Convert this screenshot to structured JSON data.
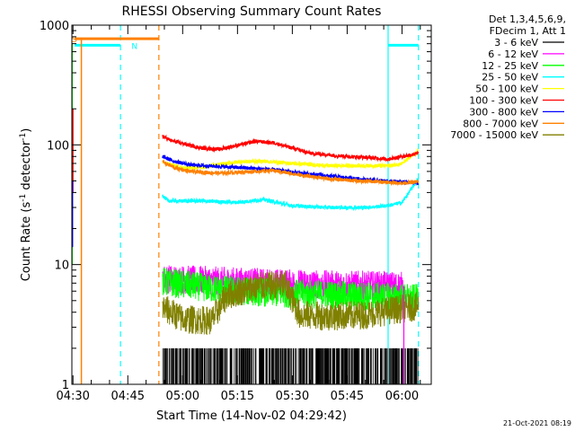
{
  "chart_data": {
    "type": "line",
    "title": "RHESSI Observing Summary Count Rates",
    "xlabel": "Start Time (14-Nov-02 04:29:42)",
    "ylabel_parts": [
      "Count Rate (s",
      "-1",
      " detector",
      "-1",
      ")"
    ],
    "y_scale": "log",
    "ylim": [
      1,
      1000
    ],
    "xlim_minutes": [
      "04:29:42",
      "06:08:00"
    ],
    "y_tick_labels": [
      {
        "label": "1",
        "value": 1
      },
      {
        "label": "10",
        "value": 10
      },
      {
        "label": "100",
        "value": 100
      },
      {
        "label": "1000",
        "value": 1000
      }
    ],
    "x_tick_labels": [
      {
        "label": "04:30",
        "minute": 270
      },
      {
        "label": "04:45",
        "minute": 285
      },
      {
        "label": "05:00",
        "minute": 300
      },
      {
        "label": "05:15",
        "minute": 315
      },
      {
        "label": "05:30",
        "minute": 330
      },
      {
        "label": "05:45",
        "minute": 345
      },
      {
        "label": "06:00",
        "minute": 360
      }
    ],
    "legend_header": [
      "Det 1,3,4,5,6,9,",
      "FDecim 1, Att 1"
    ],
    "legend_position": "right",
    "series": [
      {
        "name": "3 - 6 keV",
        "color": "#000000",
        "style": "spiky",
        "x_min": [
          294.5,
          364.5
        ],
        "baseline": 1,
        "peak": 2
      },
      {
        "name": "6 - 12 keV",
        "color": "#ff00ff",
        "style": "noisy",
        "x_min": [
          294.5,
          360.5
        ],
        "points": [
          [
            294.5,
            7.6
          ],
          [
            310,
            7.3
          ],
          [
            325,
            7.0
          ],
          [
            340,
            6.8
          ],
          [
            355,
            6.7
          ],
          [
            360.5,
            6.6
          ]
        ]
      },
      {
        "name": "12 - 25 keV",
        "color": "#00ff00",
        "style": "noisy",
        "x_min": [
          294.5,
          364.5
        ],
        "points": [
          [
            294.5,
            7.2
          ],
          [
            310,
            6.2
          ],
          [
            325,
            5.8
          ],
          [
            340,
            5.6
          ],
          [
            355,
            5.4
          ],
          [
            364.5,
            5.2
          ]
        ]
      },
      {
        "name": "25 - 50 keV",
        "color": "#00ffff",
        "style": "line",
        "x_min": [
          294.5,
          364.5
        ],
        "points": [
          [
            294.5,
            38
          ],
          [
            296,
            34
          ],
          [
            305,
            34
          ],
          [
            315,
            33
          ],
          [
            322,
            35
          ],
          [
            330,
            31
          ],
          [
            340,
            30
          ],
          [
            350,
            30
          ],
          [
            356,
            31
          ],
          [
            360,
            33
          ],
          [
            364.5,
            52
          ]
        ]
      },
      {
        "name": "50 - 100 keV",
        "color": "#ffff00",
        "style": "line",
        "x_min": [
          294.5,
          364.5
        ],
        "points": [
          [
            294.5,
            72
          ],
          [
            300,
            64
          ],
          [
            305,
            65
          ],
          [
            315,
            72
          ],
          [
            322,
            73
          ],
          [
            330,
            70
          ],
          [
            340,
            67
          ],
          [
            350,
            67
          ],
          [
            357,
            67
          ],
          [
            360,
            70
          ],
          [
            364.5,
            88
          ]
        ]
      },
      {
        "name": "100 - 300 keV",
        "color": "#ff0000",
        "style": "line",
        "x_min": [
          294.5,
          364.5
        ],
        "points": [
          [
            294.5,
            118
          ],
          [
            297,
            108
          ],
          [
            305,
            94
          ],
          [
            310,
            92
          ],
          [
            320,
            107
          ],
          [
            325,
            104
          ],
          [
            330,
            94
          ],
          [
            335,
            85
          ],
          [
            345,
            80
          ],
          [
            352,
            78
          ],
          [
            356,
            76
          ],
          [
            360,
            80
          ],
          [
            364.5,
            85
          ]
        ]
      },
      {
        "name": "300 - 800 keV",
        "color": "#0000ff",
        "style": "line",
        "x_min": [
          294.5,
          364.5
        ],
        "points": [
          [
            294.5,
            80
          ],
          [
            297,
            74
          ],
          [
            302,
            68
          ],
          [
            310,
            66
          ],
          [
            318,
            64
          ],
          [
            325,
            62
          ],
          [
            332,
            58
          ],
          [
            340,
            55
          ],
          [
            348,
            52
          ],
          [
            355,
            50
          ],
          [
            360,
            49
          ],
          [
            364.5,
            48
          ]
        ]
      },
      {
        "name": "800 - 7000 keV",
        "color": "#ff8000",
        "style": "line",
        "x_min": [
          270.5,
          364.5
        ],
        "points": [
          [
            294.5,
            72
          ],
          [
            298,
            64
          ],
          [
            302,
            60
          ],
          [
            310,
            58
          ],
          [
            320,
            60
          ],
          [
            325,
            61
          ],
          [
            332,
            56
          ],
          [
            340,
            52
          ],
          [
            348,
            50
          ],
          [
            355,
            49
          ],
          [
            360,
            48
          ],
          [
            364.5,
            49
          ]
        ],
        "pre_segment": {
          "x_min": [
            270.5,
            293.5
          ],
          "value": 770
        },
        "left_spike": {
          "minute": 272.3,
          "range": [
            1,
            770
          ]
        }
      },
      {
        "name": "7000 - 15000 keV",
        "color": "#808000",
        "style": "noisy",
        "x_min": [
          294.5,
          364.5
        ],
        "points": [
          [
            294.5,
            4.4
          ],
          [
            300,
            3.5
          ],
          [
            308,
            3.4
          ],
          [
            312,
            5.5
          ],
          [
            320,
            6.5
          ],
          [
            328,
            6.8
          ],
          [
            332,
            3.8
          ],
          [
            340,
            3.7
          ],
          [
            350,
            3.8
          ],
          [
            358,
            4.2
          ],
          [
            364.5,
            4.5
          ]
        ]
      }
    ],
    "annotations": {
      "flags": [
        {
          "label": "S",
          "color": "#ff8000",
          "minute": 270.2,
          "value": 770
        },
        {
          "label": "N",
          "color": "#00ffff",
          "minute": 286.5,
          "value": 680
        }
      ],
      "dashed_vlines": [
        {
          "color": "#00ffff",
          "minute": 283
        },
        {
          "color": "#ff8000",
          "minute": 293.5
        },
        {
          "color": "#00ffff",
          "minute": 364.5
        }
      ],
      "solid_vlines": [
        {
          "color": "#00ffff",
          "minute": 356.2
        }
      ],
      "hbars": [
        {
          "color": "#00ffff",
          "x_min": [
            270.5,
            283
          ],
          "value": 680
        },
        {
          "color": "#00ffff",
          "x_min": [
            356.2,
            364.5
          ],
          "value": 680
        }
      ],
      "left_edge_spikes": [
        {
          "color": "#00ff00",
          "minute": 269.8,
          "range": [
            10,
            700
          ]
        },
        {
          "color": "#ff0000",
          "minute": 270.0,
          "range": [
            40,
            200
          ]
        },
        {
          "color": "#0000ff",
          "minute": 269.9,
          "range": [
            14,
            50
          ]
        }
      ]
    }
  },
  "footer": {
    "timestamp": "21-Oct-2021 08:19"
  }
}
